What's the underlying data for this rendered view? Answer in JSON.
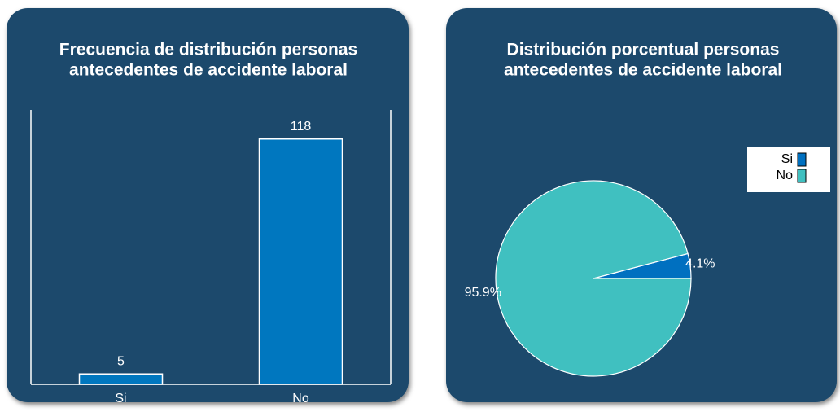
{
  "chart_data": [
    {
      "type": "bar",
      "title": [
        "Frecuencia de distribución personas",
        "antecedentes de accidente laboral"
      ],
      "categories": [
        "Si",
        "No"
      ],
      "values": [
        5,
        118
      ],
      "color": "#0077bf",
      "ylim": [
        0,
        132
      ]
    },
    {
      "type": "pie",
      "title": [
        "Distribución porcentual personas",
        "antecedentes de accidente laboral"
      ],
      "categories": [
        "Si",
        "No"
      ],
      "values": [
        4.1,
        95.9
      ],
      "value_labels": [
        "4.1%",
        "95.9%"
      ],
      "colors": [
        "#0070c0",
        "#40c0c0"
      ],
      "legend": "right"
    }
  ]
}
